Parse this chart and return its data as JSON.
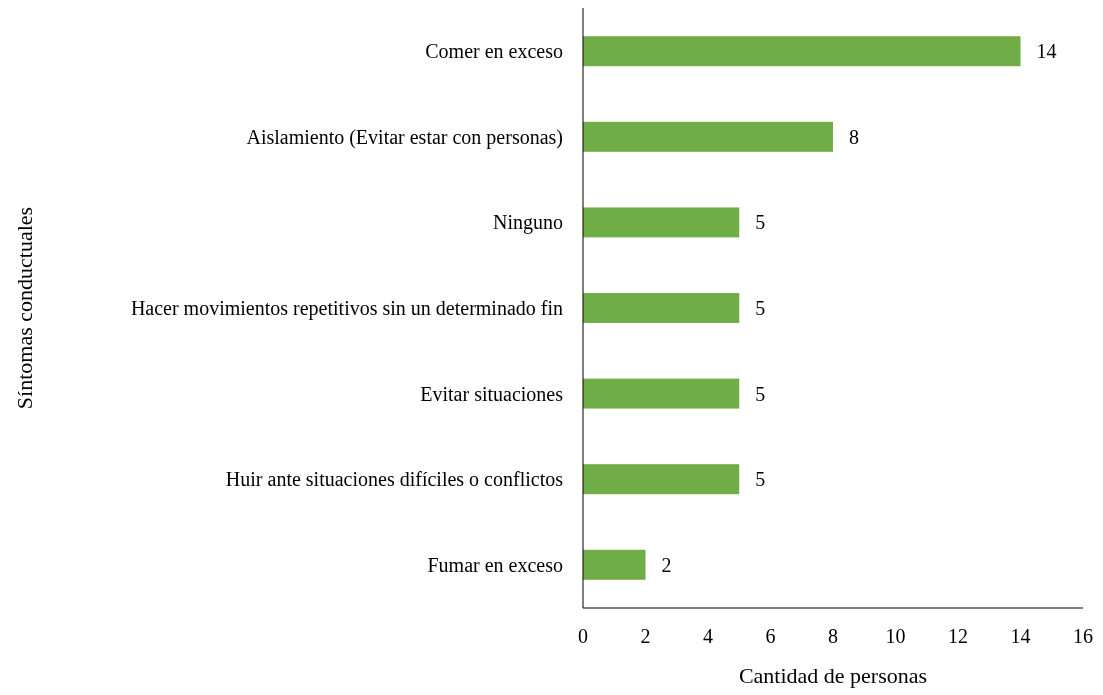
{
  "chart_data": {
    "type": "bar",
    "orientation": "horizontal",
    "xlabel": "Cantidad de personas",
    "ylabel": "Síntomas conductuales",
    "categories": [
      "Comer en exceso",
      "Aislamiento (Evitar estar con personas)",
      "Ninguno",
      "Hacer movimientos repetitivos sin un determinado fin",
      "Evitar situaciones",
      "Huir ante situaciones difíciles o conflictos",
      "Fumar en exceso"
    ],
    "values": [
      14,
      8,
      5,
      5,
      5,
      5,
      2
    ],
    "color": "#70ad47",
    "xlim": [
      0,
      16
    ],
    "xticks": [
      0,
      2,
      4,
      6,
      8,
      10,
      12,
      14,
      16
    ],
    "data_labels": true
  }
}
